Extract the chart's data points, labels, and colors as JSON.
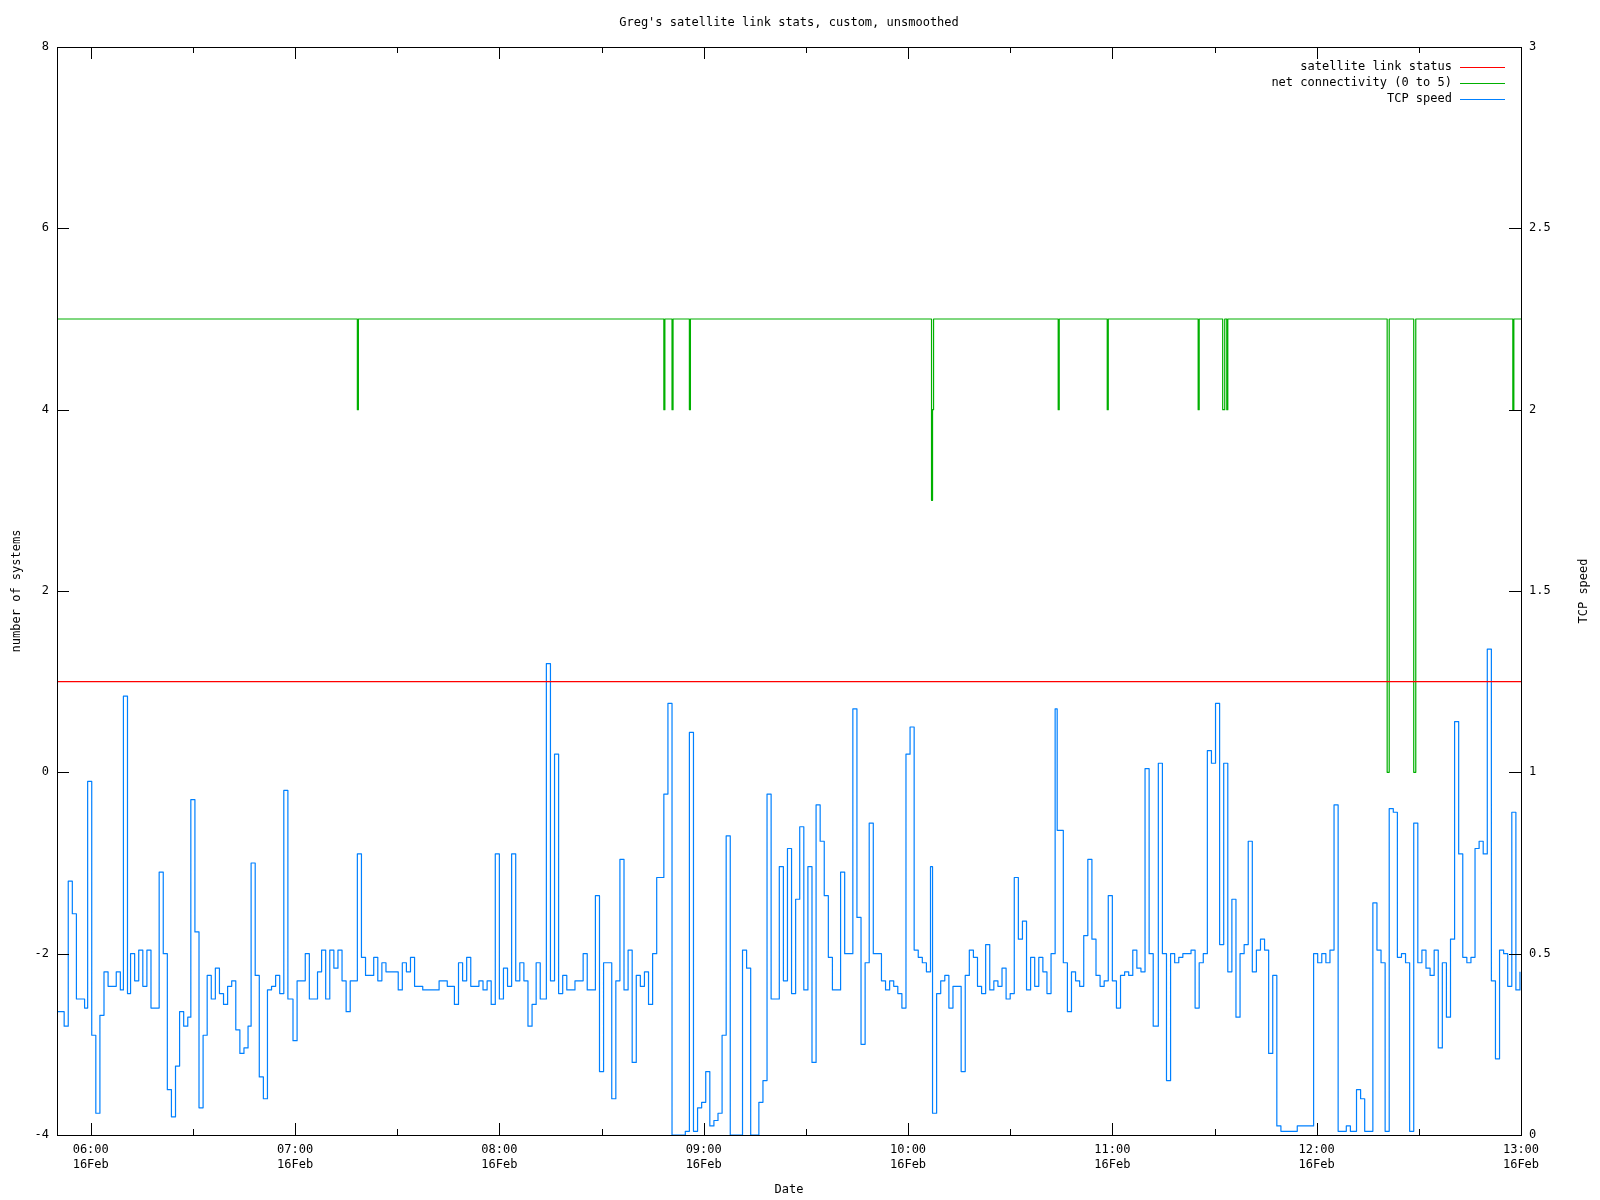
{
  "chart_data": {
    "type": "step",
    "title": "Greg's satellite link stats, custom, unsmoothed",
    "xlabel": "Date",
    "ylabel": "number of systems",
    "y2label": "TCP speed",
    "xlim": [
      "--02-16T05:50:06",
      "--02-16T13:00"
    ],
    "xticks": [
      {
        "value": "--02-16T06:00",
        "label": "06:00\n16Feb"
      },
      {
        "value": "--02-16T06:30",
        "label": null
      },
      {
        "value": "--02-16T07:00",
        "label": "07:00\n16Feb"
      },
      {
        "value": "--02-16T07:30",
        "label": null
      },
      {
        "value": "--02-16T08:00",
        "label": "08:00\n16Feb"
      },
      {
        "value": "--02-16T08:30",
        "label": null
      },
      {
        "value": "--02-16T09:00",
        "label": "09:00\n16Feb"
      },
      {
        "value": "--02-16T09:30",
        "label": null
      },
      {
        "value": "--02-16T10:00",
        "label": "10:00\n16Feb"
      },
      {
        "value": "--02-16T10:30",
        "label": null
      },
      {
        "value": "--02-16T11:00",
        "label": "11:00\n16Feb"
      },
      {
        "value": "--02-16T11:30",
        "label": null
      },
      {
        "value": "--02-16T12:00",
        "label": "12:00\n16Feb"
      },
      {
        "value": "--02-16T12:30",
        "label": null
      },
      {
        "value": "--02-16T13:00",
        "label": "13:00\n16Feb"
      }
    ],
    "ylim": [
      -4,
      8
    ],
    "yticks": [
      -4,
      -2,
      0,
      2,
      4,
      6,
      8
    ],
    "y2lim": [
      0,
      3
    ],
    "y2ticks": [
      0,
      0.5,
      1,
      1.5,
      2,
      2.5,
      3
    ],
    "legend": "top right",
    "series": [
      {
        "name": "satellite link status",
        "color": "#ff0000",
        "x": [
          "--02-16T05:50:06",
          "--02-16T13:00"
        ],
        "values": [
          1,
          1
        ]
      },
      {
        "name": "net connectivity (0 to 5)",
        "color": "#00b000",
        "x": [
          "--02-16T05:50:06",
          "--02-16T07:18:18",
          "--02-16T07:18:36",
          "--02-16T08:48:18",
          "--02-16T08:48:36",
          "--02-16T08:50:42",
          "--02-16T08:51:00",
          "--02-16T08:55:48",
          "--02-16T08:56:06",
          "--02-16T10:06:54",
          "--02-16T10:07:12",
          "--02-16T10:07:30",
          "--02-16T10:44:06",
          "--02-16T10:44:24",
          "--02-16T10:58:30",
          "--02-16T10:58:48",
          "--02-16T11:25:12",
          "--02-16T11:25:30",
          "--02-16T11:32:24",
          "--02-16T11:33:00",
          "--02-16T11:33:36",
          "--02-16T11:33:54",
          "--02-16T12:20:42",
          "--02-16T12:21:18",
          "--02-16T12:28:30",
          "--02-16T12:29:06",
          "--02-16T12:57:36",
          "--02-16T12:57:54",
          "--02-16T13:00"
        ],
        "values": [
          5,
          4,
          5,
          4,
          5,
          4,
          5,
          4,
          5,
          3,
          4,
          5,
          4,
          5,
          4,
          5,
          4,
          5,
          4,
          5,
          4,
          5,
          0,
          5,
          0,
          5,
          4,
          5,
          5
        ]
      },
      {
        "name": "TCP speed",
        "color": "#0080ff",
        "axis": "y2",
        "x": [
          "--02-16T05:50:24",
          "--02-16T05:52:12",
          "--02-16T05:53:24",
          "--02-16T05:54:36",
          "--02-16T05:55:48",
          "--02-16T05:58:12",
          "--02-16T05:59:06",
          "--02-16T06:00:18",
          "--02-16T06:01:30",
          "--02-16T06:02:42",
          "--02-16T06:03:54",
          "--02-16T06:05:06",
          "--02-16T06:07:30",
          "--02-16T06:08:42",
          "--02-16T06:09:36",
          "--02-16T06:10:48",
          "--02-16T06:11:42",
          "--02-16T06:12:54",
          "--02-16T06:14:06",
          "--02-16T06:15:18",
          "--02-16T06:16:30",
          "--02-16T06:17:42",
          "--02-16T06:20:06",
          "--02-16T06:21:18",
          "--02-16T06:22:30",
          "--02-16T06:23:42",
          "--02-16T06:24:54",
          "--02-16T06:26:06",
          "--02-16T06:27:18",
          "--02-16T06:28:30",
          "--02-16T06:29:24",
          "--02-16T06:30:36",
          "--02-16T06:31:48",
          "--02-16T06:33:00",
          "--02-16T06:34:12",
          "--02-16T06:35:24",
          "--02-16T06:36:36",
          "--02-16T06:37:48",
          "--02-16T06:39:00",
          "--02-16T06:40:12",
          "--02-16T06:41:24",
          "--02-16T06:42:36",
          "--02-16T06:43:48",
          "--02-16T06:45:00",
          "--02-16T06:46:12",
          "--02-16T06:47:06",
          "--02-16T06:48:18",
          "--02-16T06:49:30",
          "--02-16T06:50:42",
          "--02-16T06:51:54",
          "--02-16T06:53:06",
          "--02-16T06:54:18",
          "--02-16T06:55:30",
          "--02-16T06:56:42",
          "--02-16T06:57:54",
          "--02-16T06:59:24",
          "--02-16T07:00:36",
          "--02-16T07:03:00",
          "--02-16T07:04:12",
          "--02-16T07:06:36",
          "--02-16T07:07:48",
          "--02-16T07:09:00",
          "--02-16T07:10:12",
          "--02-16T07:11:24",
          "--02-16T07:12:36",
          "--02-16T07:13:48",
          "--02-16T07:15:00",
          "--02-16T07:16:12",
          "--02-16T07:18:18",
          "--02-16T07:19:30",
          "--02-16T07:20:42",
          "--02-16T07:23:06",
          "--02-16T07:24:18",
          "--02-16T07:25:30",
          "--02-16T07:26:42",
          "--02-16T07:30:18",
          "--02-16T07:31:30",
          "--02-16T07:32:42",
          "--02-16T07:33:54",
          "--02-16T07:35:06",
          "--02-16T07:37:30",
          "--02-16T07:42:18",
          "--02-16T07:44:42",
          "--02-16T07:46:48",
          "--02-16T07:48:00",
          "--02-16T07:49:12",
          "--02-16T07:50:24",
          "--02-16T07:51:36",
          "--02-16T07:54:00",
          "--02-16T07:55:12",
          "--02-16T07:56:24",
          "--02-16T07:57:36",
          "--02-16T07:58:48",
          "--02-16T08:00:00",
          "--02-16T08:01:12",
          "--02-16T08:02:24",
          "--02-16T08:03:36",
          "--02-16T08:04:48",
          "--02-16T08:06:00",
          "--02-16T08:07:12",
          "--02-16T08:08:24",
          "--02-16T08:09:36",
          "--02-16T08:10:48",
          "--02-16T08:12:00",
          "--02-16T08:13:48",
          "--02-16T08:15:00",
          "--02-16T08:16:12",
          "--02-16T08:17:24",
          "--02-16T08:18:36",
          "--02-16T08:19:48",
          "--02-16T08:22:12",
          "--02-16T08:24:36",
          "--02-16T08:25:48",
          "--02-16T08:28:12",
          "--02-16T08:29:24",
          "--02-16T08:30:36",
          "--02-16T08:33:00",
          "--02-16T08:34:12",
          "--02-16T08:35:24",
          "--02-16T08:36:36",
          "--02-16T08:37:48",
          "--02-16T08:39:00",
          "--02-16T08:40:12",
          "--02-16T08:41:24",
          "--02-16T08:42:36",
          "--02-16T08:43:48",
          "--02-16T08:45:00",
          "--02-16T08:46:12",
          "--02-16T08:48:18",
          "--02-16T08:49:30",
          "--02-16T08:50:42",
          "--02-16T08:54:36",
          "--02-16T08:55:48",
          "--02-16T08:57:00",
          "--02-16T08:58:12",
          "--02-16T08:59:24",
          "--02-16T09:00:36",
          "--02-16T09:01:48",
          "--02-16T09:03:00",
          "--02-16T09:04:12",
          "--02-16T09:05:24",
          "--02-16T09:06:36",
          "--02-16T09:07:48",
          "--02-16T09:11:24",
          "--02-16T09:12:36",
          "--02-16T09:13:48",
          "--02-16T09:16:12",
          "--02-16T09:17:24",
          "--02-16T09:18:36",
          "--02-16T09:19:48",
          "--02-16T09:22:12",
          "--02-16T09:23:24",
          "--02-16T09:24:36",
          "--02-16T09:25:48",
          "--02-16T09:27:00",
          "--02-16T09:28:12",
          "--02-16T09:29:24",
          "--02-16T09:30:36",
          "--02-16T09:31:48",
          "--02-16T09:33:00",
          "--02-16T09:34:12",
          "--02-16T09:35:24",
          "--02-16T09:36:36",
          "--02-16T09:37:48",
          "--02-16T09:40:12",
          "--02-16T09:41:24",
          "--02-16T09:43:48",
          "--02-16T09:45:00",
          "--02-16T09:46:12",
          "--02-16T09:47:24",
          "--02-16T09:48:36",
          "--02-16T09:49:48",
          "--02-16T09:52:12",
          "--02-16T09:53:24",
          "--02-16T09:54:36",
          "--02-16T09:55:48",
          "--02-16T09:57:00",
          "--02-16T09:58:12",
          "--02-16T09:59:24",
          "--02-16T10:00:36",
          "--02-16T10:01:48",
          "--02-16T10:03:00",
          "--02-16T10:04:12",
          "--02-16T10:05:24",
          "--02-16T10:06:36",
          "--02-16T10:07:12",
          "--02-16T10:08:24",
          "--02-16T10:09:36",
          "--02-16T10:10:48",
          "--02-16T10:12:00",
          "--02-16T10:13:12",
          "--02-16T10:15:36",
          "--02-16T10:16:48",
          "--02-16T10:18:00",
          "--02-16T10:19:12",
          "--02-16T10:20:24",
          "--02-16T10:21:36",
          "--02-16T10:22:48",
          "--02-16T10:24:00",
          "--02-16T10:25:12",
          "--02-16T10:26:24",
          "--02-16T10:27:36",
          "--02-16T10:28:48",
          "--02-16T10:30:00",
          "--02-16T10:31:12",
          "--02-16T10:32:24",
          "--02-16T10:33:36",
          "--02-16T10:34:48",
          "--02-16T10:36:00",
          "--02-16T10:37:12",
          "--02-16T10:38:24",
          "--02-16T10:39:36",
          "--02-16T10:40:48",
          "--02-16T10:42:00",
          "--02-16T10:43:12",
          "--02-16T10:43:48",
          "--02-16T10:45:36",
          "--02-16T10:46:48",
          "--02-16T10:48:00",
          "--02-16T10:49:12",
          "--02-16T10:50:24",
          "--02-16T10:51:36",
          "--02-16T10:52:48",
          "--02-16T10:54:00",
          "--02-16T10:55:12",
          "--02-16T10:56:24",
          "--02-16T10:57:36",
          "--02-16T10:58:48",
          "--02-16T11:00:00",
          "--02-16T11:01:12",
          "--02-16T11:02:24",
          "--02-16T11:03:36",
          "--02-16T11:04:48",
          "--02-16T11:06:00",
          "--02-16T11:07:12",
          "--02-16T11:08:24",
          "--02-16T11:09:36",
          "--02-16T11:10:48",
          "--02-16T11:12:00",
          "--02-16T11:13:30",
          "--02-16T11:14:42",
          "--02-16T11:15:54",
          "--02-16T11:17:06",
          "--02-16T11:18:18",
          "--02-16T11:19:30",
          "--02-16T11:20:42",
          "--02-16T11:23:06",
          "--02-16T11:24:18",
          "--02-16T11:25:30",
          "--02-16T11:26:42",
          "--02-16T11:27:54",
          "--02-16T11:29:06",
          "--02-16T11:30:18",
          "--02-16T11:31:30",
          "--02-16T11:32:42",
          "--02-16T11:33:54",
          "--02-16T11:35:06",
          "--02-16T11:36:18",
          "--02-16T11:37:30",
          "--02-16T11:38:42",
          "--02-16T11:39:54",
          "--02-16T11:41:06",
          "--02-16T11:42:18",
          "--02-16T11:43:30",
          "--02-16T11:44:42",
          "--02-16T11:45:54",
          "--02-16T11:47:06",
          "--02-16T11:48:18",
          "--02-16T11:49:30",
          "--02-16T11:54:18",
          "--02-16T11:59:06",
          "--02-16T12:00:18",
          "--02-16T12:01:30",
          "--02-16T12:02:42",
          "--02-16T12:03:54",
          "--02-16T12:05:06",
          "--02-16T12:06:18",
          "--02-16T12:08:42",
          "--02-16T12:09:54",
          "--02-16T12:11:42",
          "--02-16T12:12:54",
          "--02-16T12:14:06",
          "--02-16T12:16:30",
          "--02-16T12:17:42",
          "--02-16T12:18:54",
          "--02-16T12:20:06",
          "--02-16T12:21:18",
          "--02-16T12:22:30",
          "--02-16T12:23:42",
          "--02-16T12:24:54",
          "--02-16T12:26:06",
          "--02-16T12:27:18",
          "--02-16T12:28:30",
          "--02-16T12:29:42",
          "--02-16T12:30:54",
          "--02-16T12:32:06",
          "--02-16T12:33:18",
          "--02-16T12:34:30",
          "--02-16T12:35:42",
          "--02-16T12:36:54",
          "--02-16T12:38:06",
          "--02-16T12:39:18",
          "--02-16T12:40:30",
          "--02-16T12:41:42",
          "--02-16T12:42:54",
          "--02-16T12:44:06",
          "--02-16T12:45:18",
          "--02-16T12:46:30",
          "--02-16T12:47:42",
          "--02-16T12:48:54",
          "--02-16T12:50:06",
          "--02-16T12:51:18",
          "--02-16T12:52:30",
          "--02-16T12:53:42",
          "--02-16T12:54:54",
          "--02-16T12:56:06",
          "--02-16T12:57:18",
          "--02-16T12:58:30",
          "--02-16T12:59:42"
        ],
        "values": [
          0.34,
          0.3,
          0.7,
          0.61,
          0.375,
          0.35,
          0.975,
          0.275,
          0.06,
          0.33,
          0.45,
          0.41,
          0.45,
          0.4,
          1.21,
          0.39,
          0.5,
          0.425,
          0.51,
          0.41,
          0.51,
          0.35,
          0.725,
          0.5,
          0.125,
          0.05,
          0.19,
          0.34,
          0.3,
          0.325,
          0.925,
          0.56,
          0.075,
          0.275,
          0.44,
          0.375,
          0.46,
          0.39,
          0.36,
          0.41,
          0.425,
          0.29,
          0.225,
          0.24,
          0.3,
          0.75,
          0.44,
          0.16,
          0.1,
          0.4,
          0.41,
          0.44,
          0.39,
          0.95,
          0.375,
          0.26,
          0.425,
          0.5,
          0.375,
          0.45,
          0.51,
          0.375,
          0.51,
          0.46,
          0.51,
          0.425,
          0.34,
          0.425,
          0.775,
          0.49,
          0.44,
          0.49,
          0.425,
          0.475,
          0.45,
          0.4,
          0.475,
          0.45,
          0.49,
          0.41,
          0.4,
          0.425,
          0.41,
          0.36,
          0.475,
          0.425,
          0.49,
          0.41,
          0.425,
          0.4,
          0.425,
          0.36,
          0.775,
          0.375,
          0.46,
          0.41,
          0.775,
          0.425,
          0.475,
          0.425,
          0.3,
          0.36,
          0.475,
          0.375,
          1.3,
          0.425,
          1.05,
          0.39,
          0.44,
          0.4,
          0.425,
          0.5,
          0.4,
          0.66,
          0.175,
          0.475,
          0.1,
          0.425,
          0.76,
          0.4,
          0.51,
          0.2,
          0.44,
          0.41,
          0.45,
          0.36,
          0.5,
          0.71,
          0.94,
          1.19,
          0,
          0.01,
          1.11,
          0.01,
          0.075,
          0.09,
          0.175,
          0.025,
          0.04,
          0.06,
          0.275,
          0.825,
          0,
          0.51,
          0.46,
          0,
          0.09,
          0.15,
          0.94,
          0.375,
          0.74,
          0.425,
          0.79,
          0.39,
          0.65,
          0.85,
          0.4,
          0.74,
          0.2,
          0.91,
          0.81,
          0.66,
          0.49,
          0.4,
          0.725,
          0.5,
          1.175,
          0.6,
          0.25,
          0.475,
          0.86,
          0.5,
          0.425,
          0.4,
          0.425,
          0.41,
          0.39,
          0.35,
          1.05,
          1.125,
          0.51,
          0.49,
          0.475,
          0.45,
          0.74,
          0.06,
          0.39,
          0.425,
          0.44,
          0.35,
          0.41,
          0.175,
          0.44,
          0.51,
          0.49,
          0.41,
          0.39,
          0.525,
          0.4,
          0.425,
          0.41,
          0.46,
          0.375,
          0.39,
          0.71,
          0.54,
          0.59,
          0.4,
          0.49,
          0.41,
          0.49,
          0.45,
          0.39,
          0.5,
          1.175,
          0.84,
          0.475,
          0.34,
          0.45,
          0.425,
          0.41,
          0.55,
          0.76,
          0.54,
          0.44,
          0.41,
          0.425,
          0.66,
          0.425,
          0.35,
          0.44,
          0.45,
          0.44,
          0.51,
          0.46,
          0.45,
          1.01,
          0.5,
          0.3,
          1.025,
          0.5,
          0.15,
          0.5,
          0.475,
          0.49,
          0.5,
          0.51,
          0.35,
          0.475,
          0.5,
          1.06,
          1.025,
          1.19,
          0.525,
          1.025,
          0.45,
          0.65,
          0.325,
          0.5,
          0.525,
          0.81,
          0.45,
          0.51,
          0.54,
          0.51,
          0.225,
          0.44,
          0.025,
          0.01,
          0.025,
          0.5,
          0.475,
          0.5,
          0.475,
          0.51,
          0.91,
          0.01,
          0.025,
          0.01,
          0.125,
          0.1,
          0.01,
          0.64,
          0.51,
          0.475,
          0.01,
          0.9,
          0.89,
          0.49,
          0.5,
          0.475,
          0.01,
          0.86,
          0.475,
          0.51,
          0.46,
          0.44,
          0.51,
          0.24,
          0.475,
          0.325,
          0.54,
          1.14,
          0.775,
          0.49,
          0.475,
          0.49,
          0.79,
          0.81,
          0.775,
          1.34,
          0.425,
          0.21,
          0.51,
          0.5,
          0.41,
          0.89,
          0.4,
          0.45
        ]
      }
    ]
  }
}
